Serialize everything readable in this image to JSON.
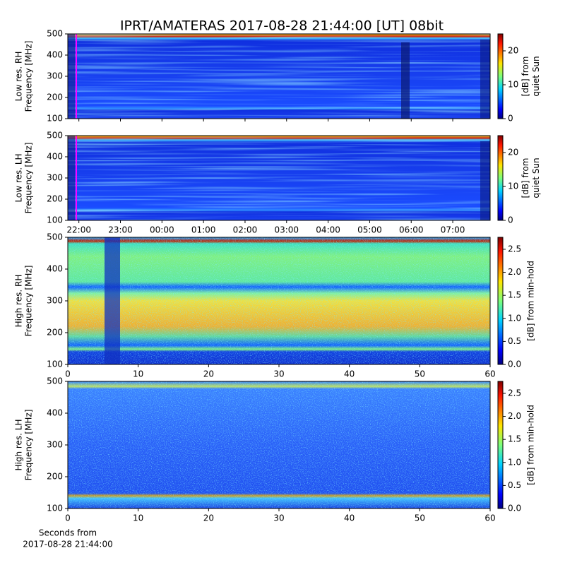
{
  "chart_data": [
    {
      "type": "heatmap",
      "title": "IPRT/AMATERAS 2017-08-28 21:44:00 [UT]   08bit",
      "ylabel": [
        "Low res. RH",
        "Frequency [MHz]"
      ],
      "ylim": [
        100,
        500
      ],
      "yticks": [
        100,
        200,
        300,
        400,
        500
      ],
      "clabel": [
        "[dB] from",
        "quiet Sun"
      ],
      "clim": [
        0,
        25
      ],
      "cticks": [
        0,
        10,
        20
      ],
      "colormap": "jet"
    },
    {
      "type": "heatmap",
      "ylabel": [
        "Low res. LH",
        "Frequency [MHz]"
      ],
      "ylim": [
        100,
        500
      ],
      "yticks": [
        100,
        200,
        300,
        400,
        500
      ],
      "xlim": [
        "21:44",
        "07:54"
      ],
      "xticks": [
        "22:00",
        "23:00",
        "00:00",
        "01:00",
        "02:00",
        "03:00",
        "04:00",
        "05:00",
        "06:00",
        "07:00"
      ],
      "clabel": [
        "[dB] from",
        "quiet Sun"
      ],
      "clim": [
        0,
        25
      ],
      "cticks": [
        0,
        10,
        20
      ],
      "colormap": "jet"
    },
    {
      "type": "heatmap",
      "ylabel": [
        "High res. RH",
        "Frequency [MHz]"
      ],
      "ylim": [
        100,
        500
      ],
      "yticks": [
        100,
        200,
        300,
        400,
        500
      ],
      "xlim": [
        0,
        60
      ],
      "xticks": [
        0,
        10,
        20,
        30,
        40,
        50,
        60
      ],
      "clabel": [
        "[dB] from min-hold"
      ],
      "clim": [
        0,
        2.76
      ],
      "cticks": [
        {
          "value": 0,
          "label": "0.0"
        },
        {
          "value": 0.5,
          "label": "0.5"
        },
        {
          "value": 1,
          "label": "1.0"
        },
        {
          "value": 1.5,
          "label": "1.5"
        },
        {
          "value": 2,
          "label": "2.0"
        },
        {
          "value": 2.5,
          "label": "2.5"
        }
      ],
      "colormap": "jet"
    },
    {
      "type": "heatmap",
      "ylabel": [
        "High res. LH",
        "Frequency [MHz]"
      ],
      "ylim": [
        100,
        500
      ],
      "yticks": [
        100,
        200,
        300,
        400,
        500
      ],
      "xlim": [
        0,
        60
      ],
      "xticks": [
        0,
        10,
        20,
        30,
        40,
        50,
        60
      ],
      "xlabel": [
        "Seconds from",
        "2017-08-28 21:44:00"
      ],
      "clabel": [
        "[dB] from min-hold"
      ],
      "clim": [
        0,
        2.76
      ],
      "cticks": [
        {
          "value": 0,
          "label": "0.0"
        },
        {
          "value": 0.5,
          "label": "0.5"
        },
        {
          "value": 1,
          "label": "1.0"
        },
        {
          "value": 1.5,
          "label": "1.5"
        },
        {
          "value": 2,
          "label": "2.0"
        },
        {
          "value": 2.5,
          "label": "2.5"
        }
      ],
      "colormap": "jet"
    }
  ]
}
